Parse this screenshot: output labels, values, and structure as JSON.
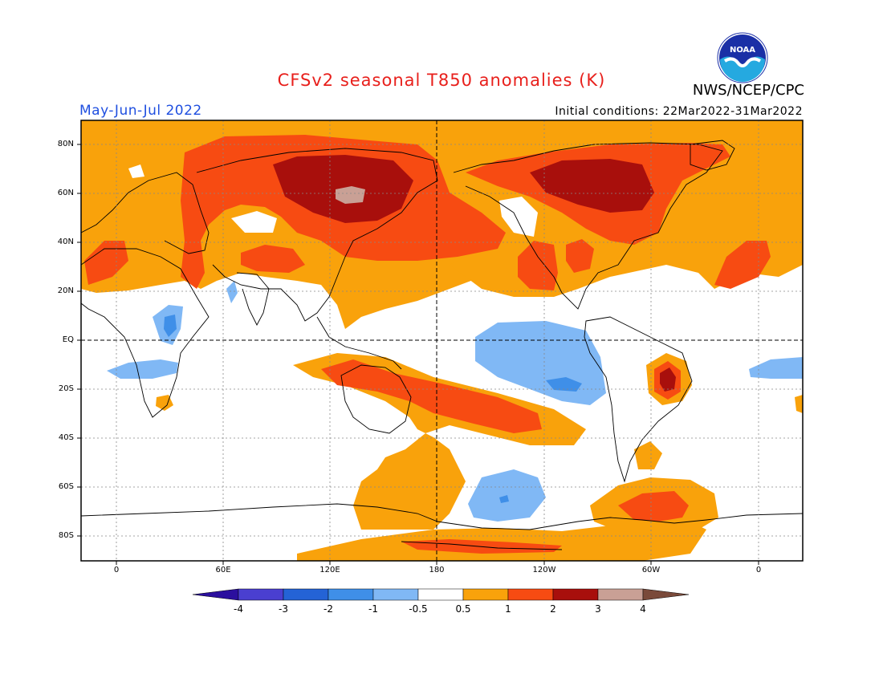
{
  "title": "CFSv2 seasonal T850 anomalies (K)",
  "season": "May-Jun-Jul 2022",
  "initial_conditions": "Initial conditions: 22Mar2022-31Mar2022",
  "agency": "NWS/NCEP/CPC",
  "logo_text": "NOAA",
  "lat_labels": [
    "80N",
    "60N",
    "40N",
    "20N",
    "EQ",
    "20S",
    "40S",
    "60S",
    "80S"
  ],
  "lon_labels": [
    "0",
    "60E",
    "120E",
    "180",
    "120W",
    "60W",
    "0"
  ],
  "colorbar": {
    "labels": [
      "-4",
      "-3",
      "-2",
      "-1",
      "-0.5",
      "0.5",
      "1",
      "2",
      "3",
      "4"
    ],
    "colors": [
      "#2b0f9e",
      "#4a3fd0",
      "#2463d6",
      "#3f8fe8",
      "#80b8f5",
      "#ffffff",
      "#f9a20b",
      "#f74b12",
      "#a80f0c",
      "#c9a095",
      "#7a4a3a"
    ]
  },
  "colors": {
    "title": "#e8201c",
    "season": "#1f4fe0",
    "plus_0_5": "#f9a20b",
    "plus_1": "#f74b12",
    "plus_2": "#a80f0c",
    "plus_3": "#c9a095",
    "minus_0_5": "#80b8f5",
    "minus_1": "#3f8fe8"
  }
}
